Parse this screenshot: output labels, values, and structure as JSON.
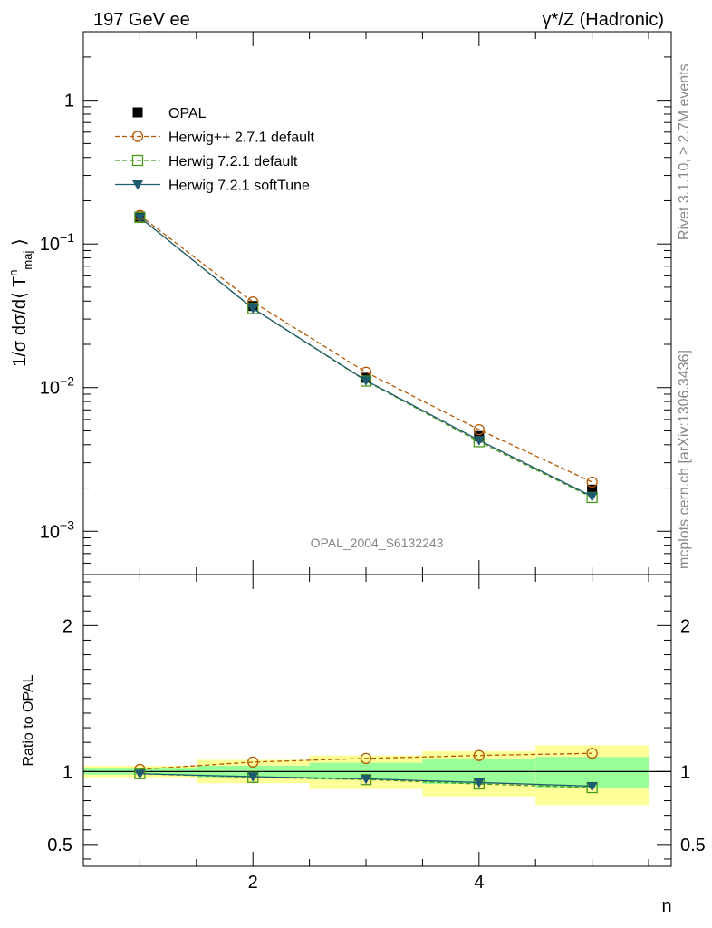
{
  "header": {
    "left": "197 GeV ee",
    "right": "γ*/Z (Hadronic)"
  },
  "side_text": {
    "rivet": "Rivet 3.1.10, ≥ 2.7M events",
    "mcplots": "mcplots.cern.ch [arXiv:1306.3436]"
  },
  "watermark": "OPAL_2004_S6132243",
  "chart_data": [
    {
      "type": "line",
      "name": "main",
      "ylabel": "1/σ dσ/d⟨ T^n_maj ⟩",
      "yscale": "log",
      "ylim": [
        0.0005,
        3
      ],
      "xlim": [
        0.5,
        5.7
      ],
      "y_ticks": [
        {
          "value": 1,
          "label": "1"
        },
        {
          "value": 0.1,
          "label": "10^-1"
        },
        {
          "value": 0.01,
          "label": "10^-2"
        },
        {
          "value": 0.001,
          "label": "10^-3"
        }
      ],
      "x": [
        1,
        2,
        3,
        4,
        5
      ],
      "series": [
        {
          "name": "OPAL",
          "color": "#000000",
          "marker": "filled-square",
          "values": [
            0.155,
            0.037,
            0.0117,
            0.0046,
            0.00195
          ]
        },
        {
          "name": "Herwig++ 2.7.1 default",
          "color": "#b35900",
          "marker": "open-circle",
          "line": "dashed",
          "values": [
            0.158,
            0.0395,
            0.0128,
            0.0051,
            0.0022
          ]
        },
        {
          "name": "Herwig 7.2.1 default",
          "color": "#4c9a1a",
          "marker": "open-square",
          "line": "dashed",
          "values": [
            0.153,
            0.0355,
            0.0111,
            0.0042,
            0.00172
          ]
        },
        {
          "name": "Herwig 7.2.1 softTune",
          "color": "#1e5a6e",
          "marker": "filled-triangle-down",
          "line": "solid",
          "values": [
            0.153,
            0.0356,
            0.0112,
            0.0043,
            0.00175
          ]
        }
      ]
    },
    {
      "type": "line",
      "name": "ratio",
      "ylabel": "Ratio to OPAL",
      "xlabel": "n",
      "ylim": [
        0.35,
        2.35
      ],
      "xlim": [
        0.5,
        5.7
      ],
      "y_ticks": [
        {
          "value": 0.5,
          "label": "0.5"
        },
        {
          "value": 1,
          "label": "1"
        },
        {
          "value": 2,
          "label": "2"
        }
      ],
      "x_ticks": [
        {
          "value": 2,
          "label": "2"
        },
        {
          "value": 4,
          "label": "4"
        }
      ],
      "bands": [
        {
          "x0": 0.5,
          "x1": 1.5,
          "yellow": [
            0.96,
            1.04
          ],
          "green": [
            0.98,
            1.02
          ]
        },
        {
          "x0": 1.5,
          "x1": 2.5,
          "yellow": [
            0.92,
            1.08
          ],
          "green": [
            0.96,
            1.04
          ]
        },
        {
          "x0": 2.5,
          "x1": 3.5,
          "yellow": [
            0.88,
            1.11
          ],
          "green": [
            0.945,
            1.06
          ]
        },
        {
          "x0": 3.5,
          "x1": 4.5,
          "yellow": [
            0.83,
            1.14
          ],
          "green": [
            0.915,
            1.09
          ]
        },
        {
          "x0": 4.5,
          "x1": 5.5,
          "yellow": [
            0.77,
            1.18
          ],
          "green": [
            0.89,
            1.1
          ]
        }
      ],
      "x": [
        1,
        2,
        3,
        4,
        5
      ],
      "series": [
        {
          "name": "Herwig++ 2.7.1 default",
          "color": "#b35900",
          "marker": "open-circle",
          "line": "dashed",
          "values": [
            1.015,
            1.065,
            1.09,
            1.11,
            1.125
          ]
        },
        {
          "name": "Herwig 7.2.1 default",
          "color": "#4c9a1a",
          "marker": "open-square",
          "line": "dashed",
          "values": [
            0.985,
            0.96,
            0.945,
            0.915,
            0.89
          ]
        },
        {
          "name": "Herwig 7.2.1 softTune",
          "color": "#1e5a6e",
          "marker": "filled-triangle-down",
          "line": "solid",
          "values": [
            0.985,
            0.965,
            0.95,
            0.925,
            0.9
          ]
        }
      ]
    }
  ]
}
